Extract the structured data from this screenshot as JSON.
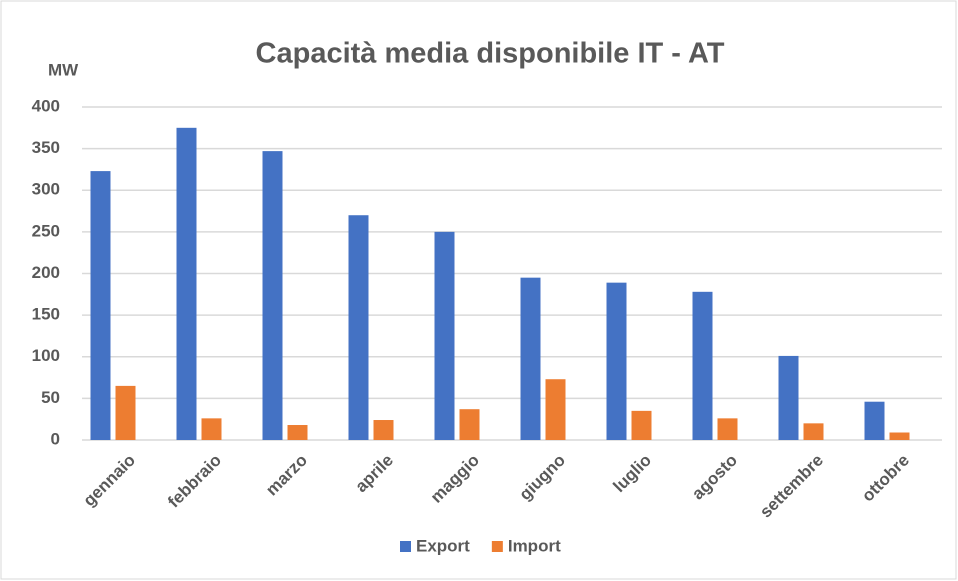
{
  "chart_data": {
    "type": "bar",
    "title": "Capacità media disponibile IT - AT",
    "y_label": "MW",
    "categories": [
      "gennaio",
      "febbraio",
      "marzo",
      "aprile",
      "maggio",
      "giugno",
      "luglio",
      "agosto",
      "settembre",
      "ottobre"
    ],
    "series": [
      {
        "name": "Export",
        "color": "#4472c4",
        "values": [
          323,
          375,
          347,
          270,
          250,
          195,
          189,
          178,
          101,
          46
        ]
      },
      {
        "name": "Import",
        "color": "#ed7d31",
        "values": [
          65,
          26,
          18,
          24,
          37,
          73,
          35,
          26,
          20,
          9
        ]
      }
    ],
    "ylim": [
      0,
      400
    ],
    "yticks": [
      0,
      50,
      100,
      150,
      200,
      250,
      300,
      350,
      400
    ],
    "grid": true,
    "legend": "bottom"
  }
}
